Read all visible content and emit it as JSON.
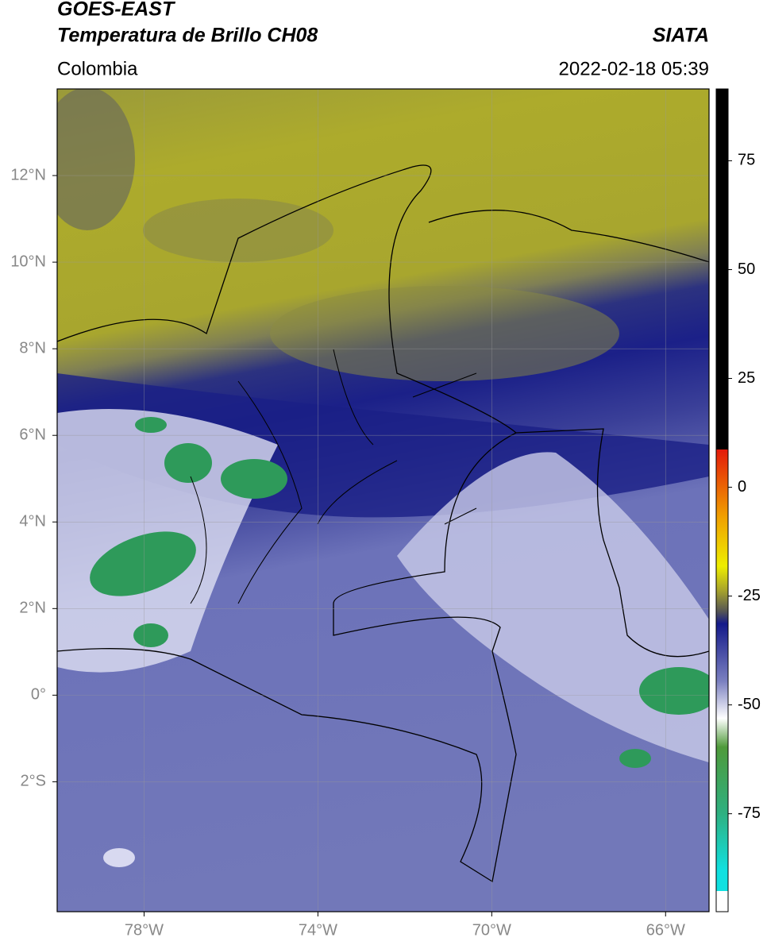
{
  "header": {
    "title": "GOES-EAST",
    "subtitle": "Temperatura de Brillo CH08",
    "region": "Colombia",
    "source": "SIATA",
    "datetime": "2022-02-18 05:39"
  },
  "map": {
    "xlim": [
      -80,
      -65
    ],
    "ylim": [
      -5,
      14
    ],
    "lon_ticks": [
      {
        "value": -78,
        "label": "78°W"
      },
      {
        "value": -74,
        "label": "74°W"
      },
      {
        "value": -70,
        "label": "70°W"
      },
      {
        "value": -66,
        "label": "66°W"
      }
    ],
    "lat_ticks": [
      {
        "value": 12,
        "label": "12°N"
      },
      {
        "value": 10,
        "label": "10°N"
      },
      {
        "value": 8,
        "label": "8°N"
      },
      {
        "value": 6,
        "label": "6°N"
      },
      {
        "value": 4,
        "label": "4°N"
      },
      {
        "value": 2,
        "label": "2°N"
      },
      {
        "value": 0,
        "label": "0°"
      },
      {
        "value": -2,
        "label": "2°S"
      }
    ]
  },
  "colorbar": {
    "lim": [
      -97.5,
      91.5
    ],
    "ticks": [
      75,
      50,
      25,
      0,
      -25,
      -50,
      -75
    ]
  }
}
